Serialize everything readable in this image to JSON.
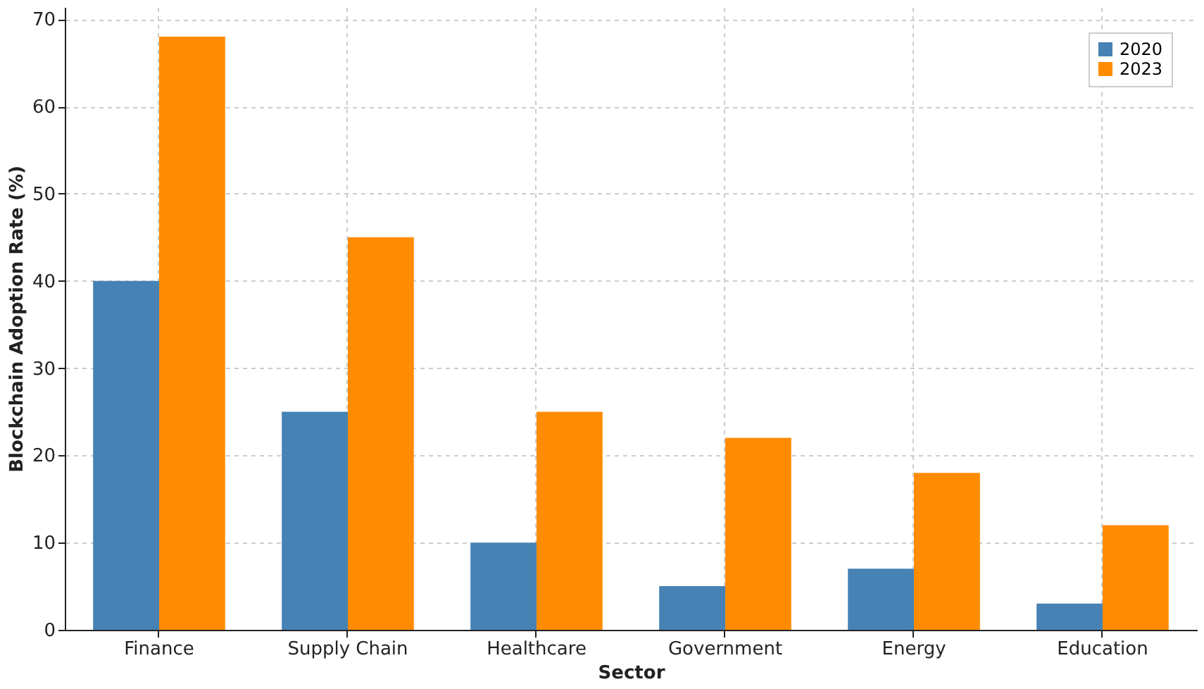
{
  "chart_data": {
    "type": "bar",
    "xlabel": "Sector",
    "ylabel": "Blockchain Adoption Rate (%)",
    "categories": [
      "Finance",
      "Supply Chain",
      "Healthcare",
      "Government",
      "Energy",
      "Education"
    ],
    "series": [
      {
        "name": "2020",
        "color": "#4682b4",
        "values": [
          40,
          25,
          10,
          5,
          7,
          3
        ]
      },
      {
        "name": "2023",
        "color": "#ff8c00",
        "values": [
          68,
          45,
          25,
          22,
          18,
          12
        ]
      }
    ],
    "ylim": [
      0,
      71.4
    ],
    "yticks": [
      0,
      10,
      20,
      30,
      40,
      50,
      60,
      70
    ],
    "grid": true,
    "legend": "top right"
  }
}
